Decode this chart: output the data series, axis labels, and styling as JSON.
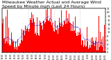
{
  "title": "Milwaukee Weather Actual and Average Wind Speed by Minute mph (Last 24 Hours)",
  "title_fontsize": 4.5,
  "background_color": "#ffffff",
  "plot_bg_color": "#ffffff",
  "bar_color": "#ff0000",
  "line_color": "#0000ff",
  "ylim": [
    0,
    22
  ],
  "num_points": 1440,
  "grid_color": "#aaaaaa",
  "vline_color": "#aaaaaa",
  "yticks": [
    0,
    2,
    4,
    6,
    8,
    10,
    12,
    14,
    16,
    18,
    20,
    22
  ]
}
